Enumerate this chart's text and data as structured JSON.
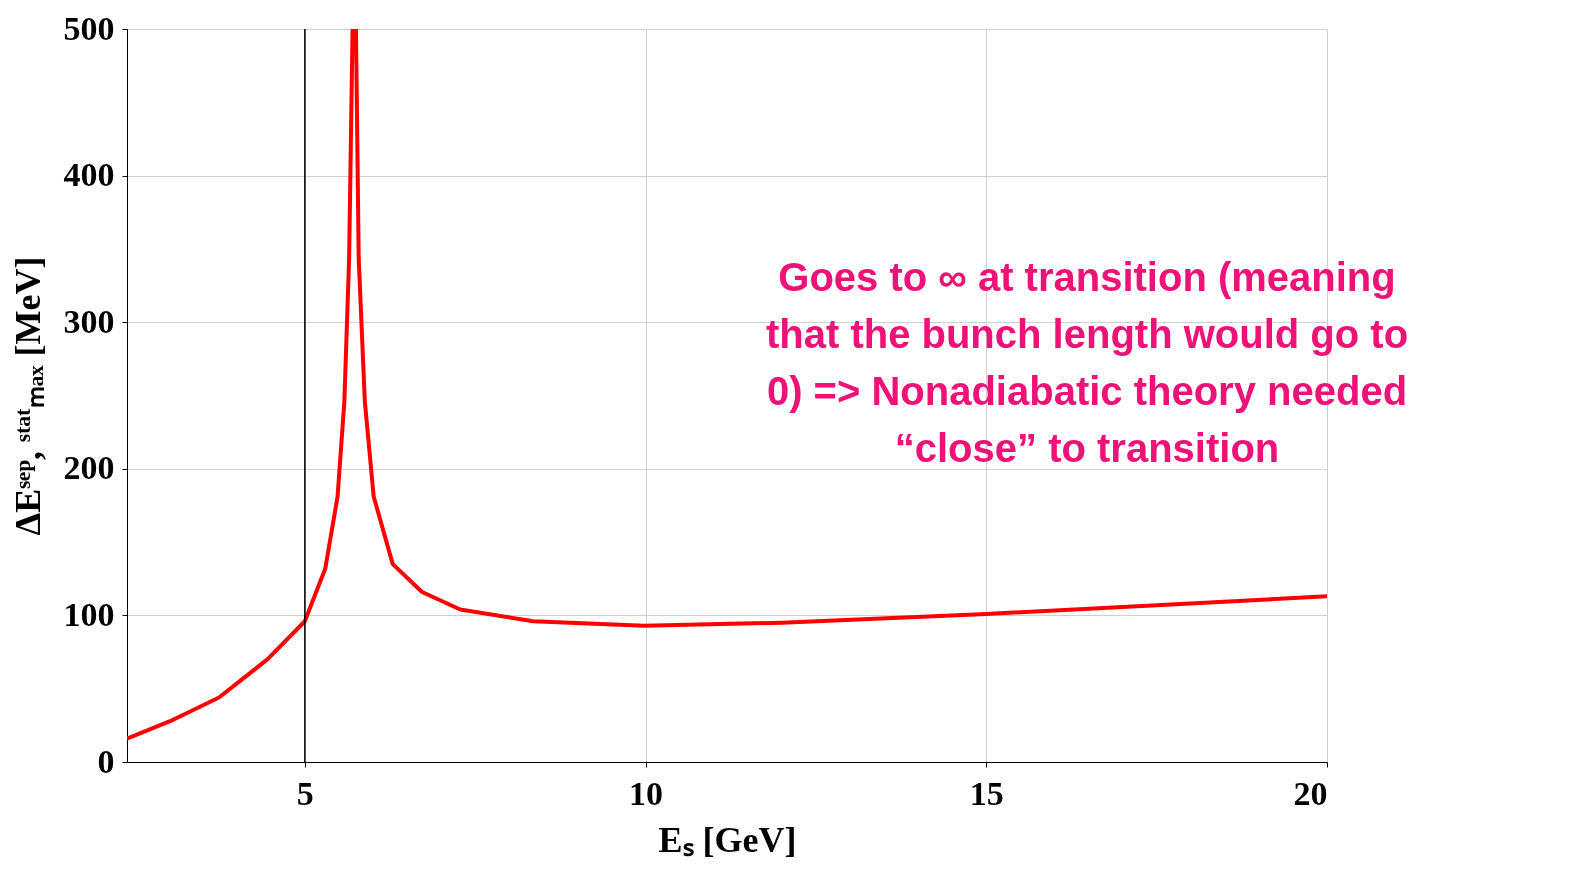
{
  "chart_data": {
    "type": "line",
    "xlabel": "Eₛ [GeV]",
    "ylabel": "ΔEˢᵉᵖ, ˢᵗᵃᵗₘₐₓ [MeV]",
    "x": [
      2.39,
      3.03,
      3.74,
      4.45,
      5.0,
      5.3,
      5.48,
      5.58,
      5.65,
      5.7,
      5.75,
      5.79,
      5.88,
      6.01,
      6.29,
      6.72,
      7.28,
      8.35,
      9.98,
      12,
      15,
      17.5,
      20
    ],
    "series": [
      {
        "color": "#ff0000",
        "values": [
          16,
          28,
          44,
          70,
          96,
          132,
          181,
          246,
          344,
          500,
          500,
          344,
          246,
          181,
          135,
          116,
          104,
          96,
          93,
          95,
          101,
          107,
          113
        ]
      }
    ],
    "xlim": [
      2.39,
      20
    ],
    "ylim": [
      0,
      500
    ],
    "xticks": [
      5,
      10,
      15,
      20
    ],
    "yticks": [
      0,
      100,
      200,
      300,
      400,
      500
    ],
    "grid": true,
    "legend": false,
    "ref_lines": [
      {
        "axis": "x",
        "value": 5,
        "color": "#000000"
      }
    ],
    "annotations": [
      "Goes to ∞ at transition (meaning\nthat the bunch length would go to\n0) => Nonadiabatic theory needed\n“close” to transition"
    ]
  }
}
